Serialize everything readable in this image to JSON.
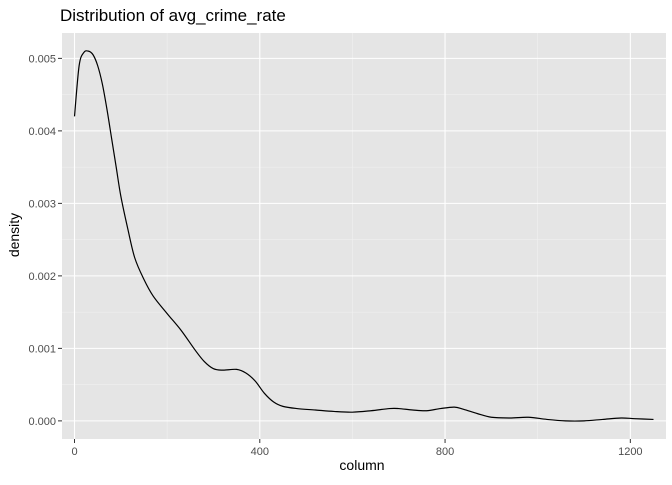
{
  "chart_data": {
    "type": "line",
    "title": "Distribution of avg_crime_rate",
    "xlabel": "column",
    "ylabel": "density",
    "xlim": [
      -27,
      1277
    ],
    "ylim": [
      -0.00025,
      0.00535
    ],
    "x_ticks": [
      0,
      400,
      800,
      1200
    ],
    "x_tick_labels": [
      "0",
      "400",
      "800",
      "1200"
    ],
    "y_ticks": [
      0,
      0.001,
      0.002,
      0.003,
      0.004,
      0.005
    ],
    "y_tick_labels": [
      "0.000",
      "0.001",
      "0.002",
      "0.003",
      "0.004",
      "0.005"
    ],
    "grid": true,
    "series": [
      {
        "color": "#000000",
        "x": [
          0,
          10,
          20,
          30,
          40,
          50,
          60,
          70,
          80,
          90,
          100,
          115,
          130,
          150,
          170,
          200,
          230,
          260,
          280,
          300,
          320,
          350,
          370,
          390,
          410,
          430,
          450,
          480,
          520,
          560,
          600,
          640,
          680,
          700,
          730,
          760,
          790,
          820,
          840,
          870,
          900,
          940,
          980,
          1020,
          1060,
          1100,
          1140,
          1180,
          1210,
          1250
        ],
        "y": [
          0.0042,
          0.0049,
          0.00508,
          0.0051,
          0.00505,
          0.0049,
          0.00465,
          0.0043,
          0.0039,
          0.0035,
          0.0031,
          0.00265,
          0.00225,
          0.00195,
          0.00172,
          0.00148,
          0.00125,
          0.00098,
          0.00082,
          0.00072,
          0.0007,
          0.00071,
          0.00066,
          0.00055,
          0.00038,
          0.00026,
          0.0002,
          0.00017,
          0.00015,
          0.00013,
          0.00012,
          0.00014,
          0.00017,
          0.00017,
          0.00015,
          0.00014,
          0.00017,
          0.00019,
          0.00016,
          0.0001,
          5e-05,
          4e-05,
          5e-05,
          2e-05,
          0.0,
          0.0,
          2e-05,
          4e-05,
          3e-05,
          2e-05
        ]
      }
    ]
  }
}
